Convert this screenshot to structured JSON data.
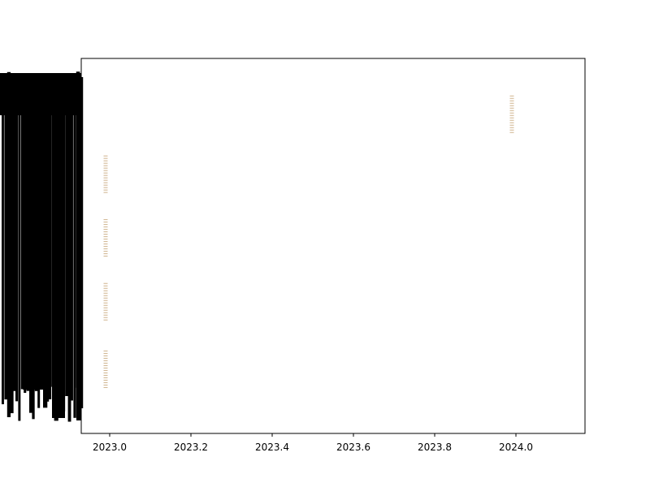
{
  "chart_data": {
    "type": "scatter",
    "title": "",
    "xlabel": "",
    "ylabel": "",
    "xlim": [
      2022.93,
      2024.17
    ],
    "ylim": [
      0,
      1
    ],
    "grid": false,
    "legend": "none",
    "x_ticks": [
      {
        "value": 2023.0,
        "label": "2023.0"
      },
      {
        "value": 2023.2,
        "label": "2023.2"
      },
      {
        "value": 2023.4,
        "label": "2023.4"
      },
      {
        "value": 2023.6,
        "label": "2023.6"
      },
      {
        "value": 2023.8,
        "label": "2023.8"
      },
      {
        "value": 2024.0,
        "label": "2024.0"
      }
    ],
    "y_tick_labels": "overlapping, illegible black text",
    "marker_color": "#c8a97e",
    "series": [
      {
        "x": 2022.99,
        "y_range": [
          0.12,
          0.22
        ]
      },
      {
        "x": 2022.99,
        "y_range": [
          0.3,
          0.4
        ]
      },
      {
        "x": 2022.99,
        "y_range": [
          0.47,
          0.57
        ]
      },
      {
        "x": 2022.99,
        "y_range": [
          0.64,
          0.74
        ]
      },
      {
        "x": 2023.99,
        "y_range": [
          0.8,
          0.9
        ]
      }
    ]
  }
}
